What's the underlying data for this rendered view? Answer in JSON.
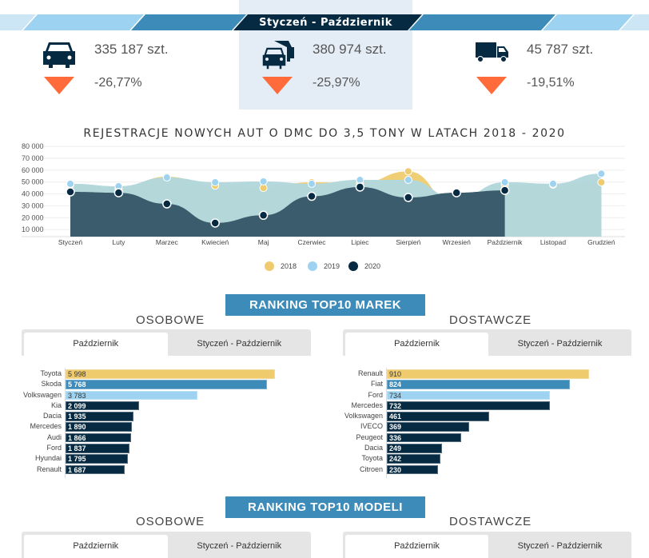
{
  "header": {
    "period": "Styczeń - Październik"
  },
  "stats": [
    {
      "icon": "car-icon",
      "value": "335 187 szt.",
      "change": "-26,77%"
    },
    {
      "icon": "cars-icon",
      "value": "380 974 szt.",
      "change": "-25,97%"
    },
    {
      "icon": "truck-icon",
      "value": "45 787 szt.",
      "change": "-19,51%"
    }
  ],
  "colors": {
    "dark": "#062a42",
    "mid": "#3d8bb8",
    "light": "#9dd3f1",
    "yellow": "#efcb6e",
    "orange": "#ff6b3a",
    "area2020": "#3a5c6d",
    "area2019": "#b5d7d8"
  },
  "chart_data": {
    "type": "area",
    "title": "REJESTRACJE NOWYCH AUT O DMC DO 3,5 TONY W LATACH 2018 - 2020",
    "categories": [
      "Styczeń",
      "Luty",
      "Marzec",
      "Kwiecień",
      "Maj",
      "Czerwiec",
      "Lipiec",
      "Sierpień",
      "Wrzesień",
      "Październik",
      "Listopad",
      "Grudzień"
    ],
    "yticks": [
      "80 000",
      "70 000",
      "60 000",
      "50 000",
      "40 000",
      "30 000",
      "20 000",
      "10 000"
    ],
    "ylim": [
      0,
      80000
    ],
    "series": [
      {
        "name": "2018",
        "color": "#efcb6e",
        "values": [
          47800,
          44400,
          54500,
          47000,
          45000,
          49800,
          49000,
          59000,
          29600,
          47800,
          47800,
          49800
        ]
      },
      {
        "name": "2019",
        "color": "#9dd3f1",
        "values": [
          48500,
          46400,
          53800,
          49800,
          50500,
          48500,
          51800,
          51800,
          36000,
          49800,
          48500,
          57000
        ]
      },
      {
        "name": "2020",
        "color": "#062a42",
        "values": [
          41700,
          41000,
          31600,
          15500,
          22000,
          38000,
          45800,
          37000,
          41000,
          43000,
          null,
          null
        ]
      }
    ],
    "legend": "bottom"
  },
  "ranking_brands": {
    "title": "RANKING TOP10 MAREK",
    "left": {
      "title": "OSOBOWE",
      "tabs": [
        "Październik",
        "Styczeń - Październik"
      ],
      "items": [
        [
          "Toyota",
          "5 998",
          5998
        ],
        [
          "Skoda",
          "5 768",
          5768
        ],
        [
          "Volkswagen",
          "3 783",
          3783
        ],
        [
          "Kia",
          "2 099",
          2099
        ],
        [
          "Dacia",
          "1 935",
          1935
        ],
        [
          "Mercedes",
          "1 890",
          1890
        ],
        [
          "Audi",
          "1 866",
          1866
        ],
        [
          "Ford",
          "1 837",
          1837
        ],
        [
          "Hyundai",
          "1 795",
          1795
        ],
        [
          "Renault",
          "1 687",
          1687
        ]
      ]
    },
    "right": {
      "title": "DOSTAWCZE",
      "tabs": [
        "Październik",
        "Styczeń - Październik"
      ],
      "items": [
        [
          "Renault",
          "910",
          910
        ],
        [
          "Fiat",
          "824",
          824
        ],
        [
          "Ford",
          "734",
          734
        ],
        [
          "Mercedes",
          "732",
          732
        ],
        [
          "Volkswagen",
          "461",
          461
        ],
        [
          "IVECO",
          "369",
          369
        ],
        [
          "Peugeot",
          "336",
          336
        ],
        [
          "Dacia",
          "249",
          249
        ],
        [
          "Toyota",
          "242",
          242
        ],
        [
          "Citroen",
          "230",
          230
        ]
      ]
    }
  },
  "ranking_models": {
    "title": "RANKING TOP10 MODELI",
    "left": {
      "title": "OSOBOWE",
      "tabs": [
        "Październik",
        "Styczeń - Październik"
      ]
    },
    "right": {
      "title": "DOSTAWCZE",
      "tabs": [
        "Październik",
        "Styczeń - Październik"
      ]
    }
  }
}
